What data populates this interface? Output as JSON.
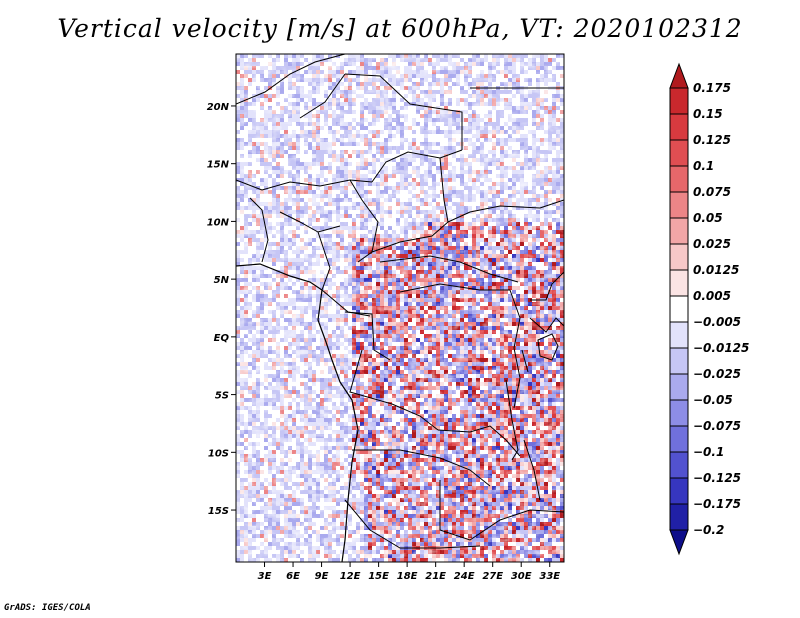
{
  "title": "Vertical velocity [m/s] at 600hPa, VT: 2020102312",
  "credit": "GrADS: IGES/COLA",
  "map": {
    "lat_labels": [
      "20N",
      "15N",
      "10N",
      "5N",
      "EQ",
      "5S",
      "10S",
      "15S"
    ],
    "lat_values": [
      20,
      15,
      10,
      5,
      0,
      -5,
      -10,
      -15
    ],
    "lon_labels": [
      "3E",
      "6E",
      "9E",
      "12E",
      "15E",
      "18E",
      "21E",
      "24E",
      "27E",
      "30E",
      "33E"
    ],
    "lon_values": [
      3,
      6,
      9,
      12,
      15,
      18,
      21,
      24,
      27,
      30,
      33
    ],
    "lon_range": [
      0,
      34.5
    ],
    "lat_range": [
      -19.5,
      24.5
    ],
    "field": "vertical velocity",
    "units": "m/s",
    "level": "600hPa",
    "valid_time": "2020102312"
  },
  "colorbar": {
    "labels": [
      "0.175",
      "0.15",
      "0.125",
      "0.1",
      "0.075",
      "0.05",
      "0.025",
      "0.0125",
      "0.005",
      "-0.005",
      "-0.0125",
      "-0.025",
      "-0.05",
      "-0.075",
      "-0.1",
      "-0.125",
      "-0.175",
      "-0.2"
    ],
    "colors": [
      "#b01a1e",
      "#c9282d",
      "#d83a3f",
      "#e04e52",
      "#e6676a",
      "#ec8587",
      "#f2a6a7",
      "#f7c8c8",
      "#fbe4e4",
      "#ffffff",
      "#e2e2fb",
      "#c6c6f5",
      "#aaaaee",
      "#8d8de6",
      "#7070dc",
      "#5252cf",
      "#3636bf",
      "#2020a6",
      "#0e0e8a"
    ]
  }
}
